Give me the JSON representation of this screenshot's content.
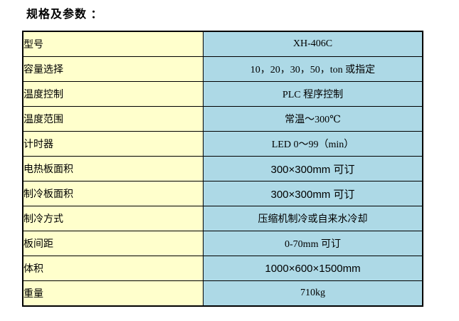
{
  "title": "规格及参数 ：",
  "colors": {
    "label_bg": "#FFFFCC",
    "value_bg": "#ADD9E6",
    "border": "#000000",
    "text": "#000000",
    "page_bg": "#FFFFFF"
  },
  "table": {
    "rows": [
      {
        "label": "型号",
        "value": "XH-406C"
      },
      {
        "label": "容量选择",
        "value": "10，20，30，50，ton 或指定"
      },
      {
        "label": "温度控制",
        "value": "PLC 程序控制"
      },
      {
        "label": "温度范围",
        "value": "常温～300℃"
      },
      {
        "label": "计时器",
        "value": "LED 0～99（min）"
      },
      {
        "label": "电热板面积",
        "value": "300×300mm 可订"
      },
      {
        "label": "制冷板面积",
        "value": "300×300mm 可订"
      },
      {
        "label": "制冷方式",
        "value": "压缩机制冷或自来水冷却"
      },
      {
        "label": "板间距",
        "value": "0-70mm 可订"
      },
      {
        "label": "体积",
        "value": "1000×600×1500mm"
      },
      {
        "label": "重量",
        "value": "710kg"
      }
    ]
  }
}
